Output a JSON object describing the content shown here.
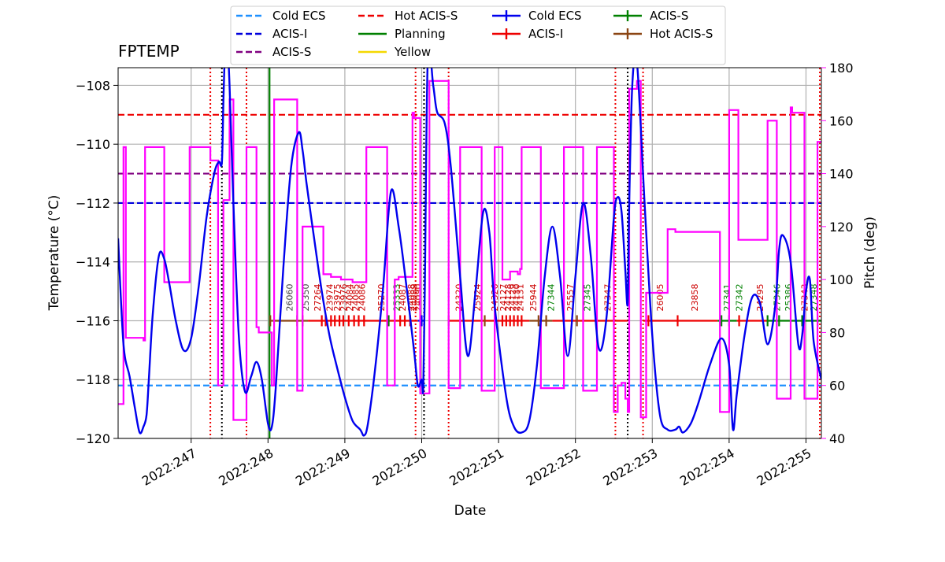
{
  "chart_data": {
    "type": "line",
    "title": "FPTEMP",
    "xlabel": "Date",
    "ylabel": "Temperature ($^\\circ$C)",
    "ylabel_right": "Pitch (deg)",
    "ylim": [
      -120,
      -107.4
    ],
    "ylim_right": [
      40,
      180
    ],
    "xlim": [
      246.05,
      255.2
    ],
    "grid": true,
    "legend_position": "top-center",
    "x_ticks": [
      {
        "value": 247,
        "label": "2022:247"
      },
      {
        "value": 248,
        "label": "2022:248"
      },
      {
        "value": 249,
        "label": "2022:249"
      },
      {
        "value": 250,
        "label": "2022:250"
      },
      {
        "value": 251,
        "label": "2022:251"
      },
      {
        "value": 252,
        "label": "2022:252"
      },
      {
        "value": 253,
        "label": "2022:253"
      },
      {
        "value": 254,
        "label": "2022:254"
      },
      {
        "value": 255,
        "label": "2022:255"
      }
    ],
    "y_ticks": [
      {
        "value": -108,
        "label": "−108"
      },
      {
        "value": -110,
        "label": "−110"
      },
      {
        "value": -112,
        "label": "−112"
      },
      {
        "value": -114,
        "label": "−114"
      },
      {
        "value": -116,
        "label": "−116"
      },
      {
        "value": -118,
        "label": "−118"
      },
      {
        "value": -120,
        "label": "−120"
      }
    ],
    "y2_ticks": [
      {
        "value": 40,
        "label": "40"
      },
      {
        "value": 60,
        "label": "60"
      },
      {
        "value": 80,
        "label": "80"
      },
      {
        "value": 100,
        "label": "100"
      },
      {
        "value": 120,
        "label": "120"
      },
      {
        "value": 140,
        "label": "140"
      },
      {
        "value": 160,
        "label": "160"
      },
      {
        "value": 180,
        "label": "180"
      }
    ],
    "limit_lines": [
      {
        "name": "Cold ECS",
        "value": -118.2,
        "color": "#1e90ff"
      },
      {
        "name": "ACIS-I",
        "value": -112.0,
        "color": "#0000dd"
      },
      {
        "name": "ACIS-S",
        "value": -111.0,
        "color": "#800080"
      },
      {
        "name": "Hot ACIS-S",
        "value": -109.0,
        "color": "#ee0000"
      }
    ],
    "planning_line": {
      "name": "Planning",
      "x": 248.02,
      "color": "#008000"
    },
    "yellow_line": {
      "name": "Yellow",
      "color": "#f5d800"
    },
    "red_vlines": [
      247.25,
      247.72,
      249.92,
      250.35,
      252.52,
      252.88,
      255.18
    ],
    "black_vlines": [
      247.4,
      250.03,
      252.68
    ],
    "fptemp_series": {
      "name": "FPTEMP",
      "color": "#0000ee",
      "x": [
        246.05,
        246.12,
        246.2,
        246.27,
        246.33,
        246.38,
        246.42,
        246.45,
        246.5,
        246.58,
        246.65,
        246.72,
        246.8,
        246.9,
        247.0,
        247.1,
        247.2,
        247.3,
        247.36,
        247.4,
        247.42,
        247.44,
        247.46,
        247.5,
        247.55,
        247.62,
        247.7,
        247.78,
        247.85,
        247.92,
        248.0,
        248.05,
        248.1,
        248.2,
        248.3,
        248.4,
        248.45,
        248.5,
        248.6,
        248.7,
        248.8,
        248.9,
        249.0,
        249.1,
        249.2,
        249.25,
        249.3,
        249.4,
        249.5,
        249.6,
        249.7,
        249.8,
        249.9,
        249.95,
        250.0,
        250.02,
        250.04,
        250.08,
        250.15,
        250.2,
        250.3,
        250.38,
        250.5,
        250.6,
        250.7,
        250.8,
        250.88,
        250.95,
        251.1,
        251.2,
        251.3,
        251.4,
        251.5,
        251.6,
        251.7,
        251.8,
        251.9,
        252.0,
        252.1,
        252.2,
        252.3,
        252.4,
        252.5,
        252.55,
        252.6,
        252.65,
        252.68,
        252.7,
        252.74,
        252.8,
        252.9,
        253.0,
        253.1,
        253.2,
        253.3,
        253.35,
        253.4,
        253.5,
        253.6,
        253.75,
        253.9,
        254.0,
        254.05,
        254.1,
        254.2,
        254.3,
        254.4,
        254.5,
        254.6,
        254.65,
        254.7,
        254.8,
        254.9,
        254.95,
        255.0,
        255.05,
        255.1,
        255.2
      ],
      "y": [
        -113.2,
        -116.8,
        -117.9,
        -119.0,
        -119.8,
        -119.6,
        -119.2,
        -118.0,
        -115.8,
        -113.8,
        -113.9,
        -114.8,
        -116.0,
        -117.0,
        -116.6,
        -114.8,
        -112.5,
        -111.0,
        -110.6,
        -110.6,
        -108.5,
        -106.8,
        -106.0,
        -108.0,
        -112.0,
        -116.5,
        -118.4,
        -117.9,
        -117.4,
        -118.0,
        -119.5,
        -119.6,
        -118.3,
        -114.2,
        -110.8,
        -109.6,
        -110.2,
        -111.3,
        -113.2,
        -115.0,
        -116.5,
        -117.6,
        -118.6,
        -119.4,
        -119.7,
        -119.9,
        -119.5,
        -117.5,
        -114.8,
        -111.6,
        -112.8,
        -114.8,
        -117.0,
        -118.2,
        -118.0,
        -118.3,
        -115.0,
        -107.0,
        -108.0,
        -108.9,
        -109.3,
        -110.8,
        -114.5,
        -117.2,
        -115.0,
        -112.3,
        -113.0,
        -115.5,
        -118.6,
        -119.6,
        -119.8,
        -119.4,
        -117.5,
        -114.5,
        -112.8,
        -114.5,
        -117.2,
        -114.5,
        -112.0,
        -113.8,
        -116.9,
        -116.0,
        -112.5,
        -111.8,
        -112.3,
        -114.3,
        -115.4,
        -112.0,
        -108.0,
        -107.2,
        -112.0,
        -116.5,
        -119.2,
        -119.7,
        -119.7,
        -119.6,
        -119.8,
        -119.5,
        -118.8,
        -117.5,
        -116.6,
        -117.5,
        -119.7,
        -118.5,
        -116.5,
        -115.2,
        -115.4,
        -116.8,
        -115.5,
        -113.6,
        -113.1,
        -114.0,
        -116.8,
        -116.5,
        -115.0,
        -114.6,
        -116.7,
        -118.0
      ]
    },
    "pitch_series": {
      "name": "Pitch",
      "color": "#ff00ff",
      "x": [
        246.05,
        246.12,
        246.12,
        246.15,
        246.15,
        246.18,
        246.18,
        246.38,
        246.38,
        246.4,
        246.4,
        246.4,
        246.42,
        246.42,
        246.65,
        246.65,
        246.98,
        246.98,
        247.25,
        247.25,
        247.35,
        247.35,
        247.42,
        247.42,
        247.5,
        247.5,
        247.55,
        247.55,
        247.72,
        247.72,
        247.85,
        247.85,
        247.88,
        247.88,
        248.05,
        248.05,
        248.08,
        248.08,
        248.38,
        248.38,
        248.45,
        248.45,
        248.5,
        248.5,
        248.72,
        248.72,
        248.82,
        248.82,
        248.95,
        248.95,
        249.1,
        249.1,
        249.23,
        249.23,
        249.28,
        249.28,
        249.55,
        249.55,
        249.65,
        249.65,
        249.7,
        249.7,
        249.88,
        249.88,
        249.9,
        249.9,
        249.98,
        249.98,
        250.1,
        250.1,
        250.35,
        250.35,
        250.5,
        250.5,
        250.78,
        250.78,
        250.95,
        250.95,
        251.05,
        251.05,
        251.15,
        251.15,
        251.25,
        251.25,
        251.28,
        251.28,
        251.3,
        251.3,
        251.55,
        251.55,
        251.82,
        251.82,
        251.85,
        251.85,
        252.1,
        252.1,
        252.28,
        252.28,
        252.5,
        252.5,
        252.55,
        252.55,
        252.6,
        252.6,
        252.65,
        252.65,
        252.68,
        252.68,
        252.7,
        252.7,
        252.8,
        252.8,
        252.85,
        252.85,
        252.9,
        252.9,
        252.92,
        252.92,
        252.95,
        252.95,
        253.2,
        253.2,
        253.3,
        253.3,
        253.88,
        253.88,
        254.0,
        254.0,
        254.12,
        254.12,
        254.5,
        254.5,
        254.62,
        254.62,
        254.8,
        254.8,
        254.82,
        254.82,
        254.98,
        254.98,
        255.0,
        255.0,
        255.15,
        255.15,
        255.2
      ],
      "y": [
        53,
        53,
        150,
        150,
        78,
        78,
        78,
        78,
        77,
        77,
        92,
        150,
        150,
        150,
        150,
        99,
        99,
        150,
        150,
        145,
        145,
        60,
        60,
        130,
        130,
        168,
        168,
        47,
        47,
        150,
        150,
        82,
        82,
        80,
        80,
        60,
        60,
        168,
        168,
        58,
        58,
        120,
        120,
        120,
        120,
        102,
        102,
        101,
        101,
        100,
        100,
        99,
        99,
        99,
        99,
        150,
        150,
        60,
        60,
        100,
        100,
        101,
        101,
        163,
        163,
        161,
        161,
        57,
        57,
        175,
        175,
        59,
        59,
        150,
        150,
        58,
        58,
        150,
        150,
        100,
        100,
        103,
        103,
        102,
        102,
        104,
        104,
        150,
        150,
        59,
        59,
        59,
        59,
        150,
        150,
        58,
        58,
        150,
        150,
        50,
        50,
        60,
        60,
        61,
        61,
        55,
        55,
        50,
        50,
        172,
        172,
        175,
        175,
        48,
        48,
        48,
        48,
        95,
        95,
        95,
        95,
        119,
        119,
        118,
        118,
        50,
        50,
        164,
        164,
        115,
        115,
        160,
        160,
        55,
        55,
        165,
        165,
        163,
        163,
        55,
        55,
        55,
        55,
        152,
        152
      ]
    },
    "obsids": [
      {
        "x": 248.28,
        "label": "26060",
        "color": "#444444"
      },
      {
        "x": 248.49,
        "label": "25350",
        "color": "#444444"
      },
      {
        "x": 248.64,
        "label": "27264",
        "color": "#cc0000"
      },
      {
        "x": 248.8,
        "label": "23974",
        "color": "#cc0000"
      },
      {
        "x": 248.9,
        "label": "23975",
        "color": "#cc0000"
      },
      {
        "x": 248.98,
        "label": "23976",
        "color": "#cc0000"
      },
      {
        "x": 249.06,
        "label": "24084",
        "color": "#cc0000"
      },
      {
        "x": 249.14,
        "label": "24085",
        "color": "#cc0000"
      },
      {
        "x": 249.22,
        "label": "24086",
        "color": "#cc0000"
      },
      {
        "x": 249.47,
        "label": "25270",
        "color": "#cc0000"
      },
      {
        "x": 249.67,
        "label": "25333",
        "color": "#008000"
      },
      {
        "x": 249.75,
        "label": "24087",
        "color": "#cc0000"
      },
      {
        "x": 249.86,
        "label": "24088",
        "color": "#cc0000"
      },
      {
        "x": 249.9,
        "label": "24089",
        "color": "#cc0000"
      },
      {
        "x": 249.95,
        "label": "24090",
        "color": "#cc0000"
      },
      {
        "x": 250.48,
        "label": "24320",
        "color": "#cc0000"
      },
      {
        "x": 250.72,
        "label": "25924",
        "color": "#cc0000"
      },
      {
        "x": 250.95,
        "label": "24326",
        "color": "#cc0000"
      },
      {
        "x": 251.06,
        "label": "24127",
        "color": "#cc0000"
      },
      {
        "x": 251.12,
        "label": "24128",
        "color": "#cc0000"
      },
      {
        "x": 251.18,
        "label": "24129",
        "color": "#cc0000"
      },
      {
        "x": 251.23,
        "label": "24130",
        "color": "#cc0000"
      },
      {
        "x": 251.28,
        "label": "24131",
        "color": "#cc0000"
      },
      {
        "x": 251.45,
        "label": "25944",
        "color": "#cc0000"
      },
      {
        "x": 251.68,
        "label": "27344",
        "color": "#008000"
      },
      {
        "x": 251.93,
        "label": "25557",
        "color": "#cc0000"
      },
      {
        "x": 252.15,
        "label": "27345",
        "color": "#008000"
      },
      {
        "x": 252.42,
        "label": "27347",
        "color": "#cc0000"
      },
      {
        "x": 253.1,
        "label": "26005",
        "color": "#cc0000"
      },
      {
        "x": 253.55,
        "label": "23858",
        "color": "#cc0000"
      },
      {
        "x": 253.97,
        "label": "27341",
        "color": "#008000"
      },
      {
        "x": 254.13,
        "label": "27342",
        "color": "#008000"
      },
      {
        "x": 254.4,
        "label": "24295",
        "color": "#cc0000"
      },
      {
        "x": 254.62,
        "label": "27346",
        "color": "#008000"
      },
      {
        "x": 254.77,
        "label": "25386",
        "color": "#008000"
      },
      {
        "x": 254.98,
        "label": "27343",
        "color": "#cc0000"
      },
      {
        "x": 255.1,
        "label": "27348",
        "color": "#008000"
      }
    ],
    "state_segments": [
      {
        "x0": 248.03,
        "x1": 248.52,
        "color": "#8b4513"
      },
      {
        "x0": 248.52,
        "x1": 249.5,
        "color": "#ee0000"
      },
      {
        "x0": 249.5,
        "x1": 249.95,
        "color": "#ee0000"
      },
      {
        "x0": 249.95,
        "x1": 250.03,
        "color": "#0000ee"
      },
      {
        "x0": 250.35,
        "x1": 251.4,
        "color": "#ee0000"
      },
      {
        "x0": 251.4,
        "x1": 251.7,
        "color": "#8b4513"
      },
      {
        "x0": 251.7,
        "x1": 252.68,
        "color": "#ee0000"
      },
      {
        "x0": 252.88,
        "x1": 253.85,
        "color": "#ee0000"
      },
      {
        "x0": 253.85,
        "x1": 254.1,
        "color": "#008000"
      },
      {
        "x0": 254.1,
        "x1": 254.5,
        "color": "#ee0000"
      },
      {
        "x0": 254.5,
        "x1": 255.2,
        "color": "#008000"
      }
    ],
    "state_ticks": [
      {
        "x": 248.03,
        "color": "#8b4513"
      },
      {
        "x": 248.38,
        "color": "#8b4513"
      },
      {
        "x": 248.45,
        "color": "#8b4513"
      },
      {
        "x": 248.7,
        "color": "#ee0000"
      },
      {
        "x": 248.75,
        "color": "#ee0000"
      },
      {
        "x": 248.82,
        "color": "#ee0000"
      },
      {
        "x": 248.87,
        "color": "#ee0000"
      },
      {
        "x": 248.93,
        "color": "#ee0000"
      },
      {
        "x": 248.98,
        "color": "#ee0000"
      },
      {
        "x": 249.05,
        "color": "#ee0000"
      },
      {
        "x": 249.12,
        "color": "#ee0000"
      },
      {
        "x": 249.18,
        "color": "#ee0000"
      },
      {
        "x": 249.25,
        "color": "#ee0000"
      },
      {
        "x": 249.57,
        "color": "#008000"
      },
      {
        "x": 249.72,
        "color": "#ee0000"
      },
      {
        "x": 249.78,
        "color": "#ee0000"
      },
      {
        "x": 249.85,
        "color": "#ee0000"
      },
      {
        "x": 250.0,
        "color": "#0000ee"
      },
      {
        "x": 250.35,
        "color": "#8b4513"
      },
      {
        "x": 250.82,
        "color": "#8b4513"
      },
      {
        "x": 251.05,
        "color": "#ee0000"
      },
      {
        "x": 251.1,
        "color": "#ee0000"
      },
      {
        "x": 251.15,
        "color": "#ee0000"
      },
      {
        "x": 251.2,
        "color": "#ee0000"
      },
      {
        "x": 251.25,
        "color": "#ee0000"
      },
      {
        "x": 251.3,
        "color": "#ee0000"
      },
      {
        "x": 251.52,
        "color": "#8b4513"
      },
      {
        "x": 251.62,
        "color": "#8b4513"
      },
      {
        "x": 252.02,
        "color": "#8b4513"
      },
      {
        "x": 252.5,
        "color": "#ee0000"
      },
      {
        "x": 252.95,
        "color": "#ee0000"
      },
      {
        "x": 253.33,
        "color": "#ee0000"
      },
      {
        "x": 253.9,
        "color": "#008000"
      },
      {
        "x": 254.0,
        "color": "#008000"
      },
      {
        "x": 254.13,
        "color": "#ee0000"
      },
      {
        "x": 254.5,
        "color": "#008000"
      },
      {
        "x": 254.65,
        "color": "#008000"
      },
      {
        "x": 254.95,
        "color": "#008000"
      },
      {
        "x": 255.15,
        "color": "#008000"
      }
    ],
    "state_level": -116.0,
    "legend": [
      {
        "label": "Cold ECS",
        "color": "#1e90ff",
        "style": "dashed"
      },
      {
        "label": "ACIS-I",
        "color": "#0000dd",
        "style": "dashed"
      },
      {
        "label": "ACIS-S",
        "color": "#800080",
        "style": "dashed"
      },
      {
        "label": "Hot ACIS-S",
        "color": "#ee0000",
        "style": "dashed"
      },
      {
        "label": "Planning",
        "color": "#008000",
        "style": "solid"
      },
      {
        "label": "Yellow",
        "color": "#f5d800",
        "style": "solid"
      },
      {
        "label": "Cold ECS",
        "color": "#0000ee",
        "style": "marker"
      },
      {
        "label": "ACIS-I",
        "color": "#ee0000",
        "style": "marker"
      },
      {
        "label": "ACIS-S",
        "color": "#008000",
        "style": "marker"
      },
      {
        "label": "Hot ACIS-S",
        "color": "#8b4513",
        "style": "marker"
      }
    ]
  }
}
